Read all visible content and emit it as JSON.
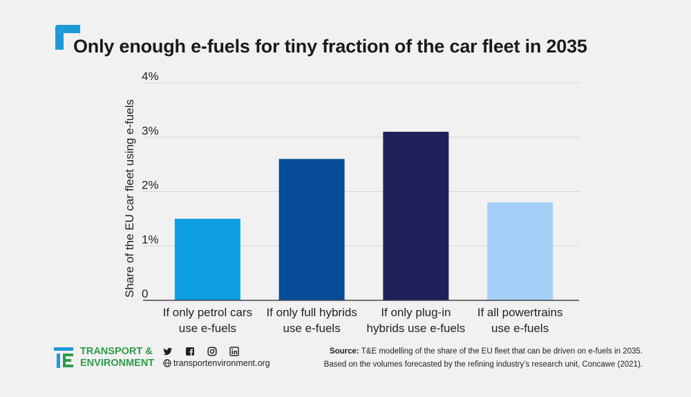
{
  "title": "Only enough e-fuels for tiny fraction of the car fleet in 2035",
  "chart_data": {
    "type": "bar",
    "title": "Only enough e-fuels for tiny fraction of the car fleet in 2035",
    "ylabel": "Share of the EU car fleet using e-fuels",
    "xlabel": "",
    "ylim": [
      0,
      4
    ],
    "yticks": [
      "0",
      "1%",
      "2%",
      "3%",
      "4%"
    ],
    "ytick_values": [
      0,
      1,
      2,
      3,
      4
    ],
    "grid": true,
    "categories": [
      [
        "If only petrol cars",
        "use e-fuels"
      ],
      [
        "If only full hybrids",
        "use e-fuels"
      ],
      [
        "If only plug-in",
        "hybrids use e-fuels"
      ],
      [
        "If all powertrains",
        "use e-fuels"
      ]
    ],
    "values": [
      1.5,
      2.6,
      3.1,
      1.8
    ],
    "colors": [
      "#0e9fe0",
      "#064c96",
      "#1f1f5a",
      "#a6cff8"
    ]
  },
  "footer": {
    "logo_line1": "TRANSPORT &",
    "logo_line2": "ENVIRONMENT",
    "social_icons": [
      "twitter-icon",
      "facebook-icon",
      "instagram-icon",
      "linkedin-icon"
    ],
    "website": "transportenvironment.org",
    "source_label": "Source:",
    "source_line1": "T&E modelling of the share of the EU fleet that can be driven on e-fuels in 2035.",
    "source_line2": "Based on the volumes forecasted by the refining industry’s research unit, Concawe (2021)."
  },
  "colors": {
    "accent": "#2e9c48",
    "corner": "#1e9ad6",
    "background": "#f1f1f1"
  }
}
